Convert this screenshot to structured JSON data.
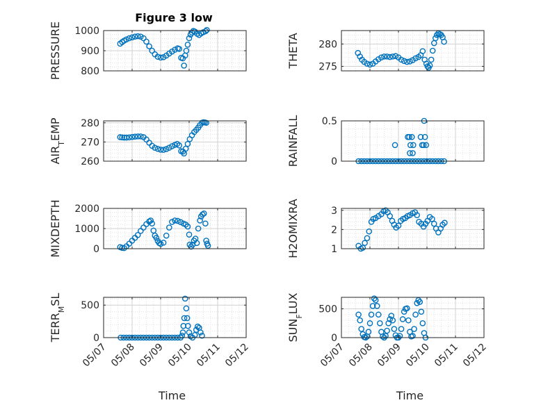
{
  "figure_title": "Figure 3 low",
  "marker_color": "#0072bd",
  "chart_data": [
    {
      "type": "scatter",
      "ylabel": "PRESSURE",
      "xlabel": "",
      "ylim": [
        800,
        1000
      ],
      "yticks": [
        800,
        900,
        1000
      ],
      "grid": true,
      "points": [
        [
          7.58,
          935
        ],
        [
          7.65,
          943
        ],
        [
          7.72,
          950
        ],
        [
          7.8,
          956
        ],
        [
          7.9,
          962
        ],
        [
          8.0,
          966
        ],
        [
          8.1,
          970
        ],
        [
          8.2,
          972
        ],
        [
          8.3,
          970
        ],
        [
          8.4,
          962
        ],
        [
          8.5,
          945
        ],
        [
          8.6,
          922
        ],
        [
          8.7,
          900
        ],
        [
          8.8,
          882
        ],
        [
          8.9,
          870
        ],
        [
          9.0,
          866
        ],
        [
          9.1,
          868
        ],
        [
          9.2,
          876
        ],
        [
          9.3,
          886
        ],
        [
          9.4,
          896
        ],
        [
          9.5,
          905
        ],
        [
          9.6,
          912
        ],
        [
          9.65,
          909
        ],
        [
          9.72,
          865
        ],
        [
          9.78,
          862
        ],
        [
          9.82,
          826
        ],
        [
          9.86,
          876
        ],
        [
          9.9,
          900
        ],
        [
          9.95,
          930
        ],
        [
          10.0,
          962
        ],
        [
          10.05,
          980
        ],
        [
          10.1,
          990
        ],
        [
          10.15,
          998
        ],
        [
          10.2,
          995
        ],
        [
          10.28,
          984
        ],
        [
          10.35,
          978
        ],
        [
          10.42,
          986
        ],
        [
          10.5,
          992
        ],
        [
          10.58,
          997
        ],
        [
          10.62,
          1003
        ]
      ]
    },
    {
      "type": "scatter",
      "ylabel": "THETA",
      "xlabel": "",
      "ylim": [
        274,
        283
      ],
      "yticks": [
        275,
        280
      ],
      "grid": true,
      "points": [
        [
          7.58,
          278.0
        ],
        [
          7.65,
          277.2
        ],
        [
          7.72,
          276.5
        ],
        [
          7.8,
          276.0
        ],
        [
          7.9,
          275.6
        ],
        [
          8.0,
          275.4
        ],
        [
          8.1,
          275.6
        ],
        [
          8.2,
          276.1
        ],
        [
          8.3,
          276.6
        ],
        [
          8.4,
          277.0
        ],
        [
          8.5,
          277.2
        ],
        [
          8.6,
          277.2
        ],
        [
          8.7,
          277.1
        ],
        [
          8.8,
          277.2
        ],
        [
          8.9,
          277.3
        ],
        [
          9.0,
          277.0
        ],
        [
          9.1,
          276.5
        ],
        [
          9.2,
          276.2
        ],
        [
          9.3,
          276.0
        ],
        [
          9.4,
          276.1
        ],
        [
          9.5,
          276.4
        ],
        [
          9.6,
          276.8
        ],
        [
          9.7,
          277.1
        ],
        [
          9.78,
          277.5
        ],
        [
          9.85,
          278.4
        ],
        [
          9.92,
          276.5
        ],
        [
          9.98,
          275.6
        ],
        [
          10.02,
          275.0
        ],
        [
          10.06,
          274.7
        ],
        [
          10.1,
          275.2
        ],
        [
          10.15,
          276.5
        ],
        [
          10.2,
          278.5
        ],
        [
          10.25,
          280.2
        ],
        [
          10.3,
          281.3
        ],
        [
          10.35,
          282.0
        ],
        [
          10.4,
          282.4
        ],
        [
          10.45,
          282.2
        ],
        [
          10.5,
          282.0
        ],
        [
          10.55,
          281.5
        ],
        [
          10.6,
          280.5
        ]
      ]
    },
    {
      "type": "scatter",
      "ylabel": "AIR_TEMP",
      "xlabel": "",
      "ylim": [
        260,
        281
      ],
      "yticks": [
        260,
        270,
        280
      ],
      "grid": true,
      "points": [
        [
          7.58,
          272.5
        ],
        [
          7.65,
          272.4
        ],
        [
          7.72,
          272.3
        ],
        [
          7.8,
          272.3
        ],
        [
          7.9,
          272.4
        ],
        [
          8.0,
          272.6
        ],
        [
          8.1,
          272.8
        ],
        [
          8.2,
          272.9
        ],
        [
          8.3,
          272.9
        ],
        [
          8.4,
          272.5
        ],
        [
          8.5,
          271.3
        ],
        [
          8.6,
          269.6
        ],
        [
          8.7,
          268.0
        ],
        [
          8.8,
          267.0
        ],
        [
          8.9,
          266.4
        ],
        [
          9.0,
          266.0
        ],
        [
          9.1,
          265.9
        ],
        [
          9.2,
          266.3
        ],
        [
          9.3,
          267.0
        ],
        [
          9.4,
          267.8
        ],
        [
          9.5,
          268.5
        ],
        [
          9.58,
          269.0
        ],
        [
          9.65,
          268.2
        ],
        [
          9.72,
          265.2
        ],
        [
          9.78,
          265.0
        ],
        [
          9.82,
          264.0
        ],
        [
          9.88,
          266.5
        ],
        [
          9.95,
          269.0
        ],
        [
          10.02,
          271.5
        ],
        [
          10.1,
          273.5
        ],
        [
          10.18,
          275.2
        ],
        [
          10.25,
          276.3
        ],
        [
          10.32,
          277.5
        ],
        [
          10.38,
          278.8
        ],
        [
          10.45,
          280.0
        ],
        [
          10.5,
          280.3
        ],
        [
          10.55,
          280.2
        ],
        [
          10.6,
          280.0
        ]
      ]
    },
    {
      "type": "scatter",
      "ylabel": "RAINFALL",
      "xlabel": "",
      "ylim": [
        0,
        0.5
      ],
      "yticks": [
        0,
        0.5
      ],
      "grid": true,
      "points": [
        [
          7.6,
          0
        ],
        [
          7.7,
          0
        ],
        [
          7.8,
          0
        ],
        [
          7.9,
          0
        ],
        [
          8.0,
          0
        ],
        [
          8.1,
          0
        ],
        [
          8.2,
          0
        ],
        [
          8.3,
          0
        ],
        [
          8.4,
          0
        ],
        [
          8.5,
          0
        ],
        [
          8.6,
          0
        ],
        [
          8.7,
          0
        ],
        [
          8.8,
          0
        ],
        [
          8.9,
          0
        ],
        [
          9.0,
          0
        ],
        [
          9.1,
          0
        ],
        [
          9.2,
          0
        ],
        [
          9.3,
          0
        ],
        [
          9.4,
          0
        ],
        [
          9.5,
          0
        ],
        [
          9.6,
          0
        ],
        [
          9.7,
          0
        ],
        [
          9.8,
          0
        ],
        [
          9.9,
          0
        ],
        [
          10.0,
          0
        ],
        [
          10.1,
          0
        ],
        [
          10.2,
          0
        ],
        [
          10.3,
          0
        ],
        [
          10.4,
          0
        ],
        [
          10.5,
          0
        ],
        [
          10.6,
          0
        ],
        [
          8.88,
          0.2
        ],
        [
          9.33,
          0.3
        ],
        [
          9.38,
          0.3
        ],
        [
          9.42,
          0.2
        ],
        [
          9.47,
          0.3
        ],
        [
          9.52,
          0.2
        ],
        [
          9.4,
          0.1
        ],
        [
          9.5,
          0.1
        ],
        [
          9.78,
          0.3
        ],
        [
          9.83,
          0.2
        ],
        [
          9.88,
          0.2
        ],
        [
          9.9,
          0.5
        ],
        [
          9.93,
          0.3
        ],
        [
          9.97,
          0.2
        ]
      ]
    },
    {
      "type": "scatter",
      "ylabel": "MIXDEPTH",
      "xlabel": "",
      "ylim": [
        0,
        2000
      ],
      "yticks": [
        0,
        1000,
        2000
      ],
      "grid": true,
      "points": [
        [
          7.58,
          80
        ],
        [
          7.65,
          40
        ],
        [
          7.72,
          30
        ],
        [
          7.8,
          120
        ],
        [
          7.9,
          250
        ],
        [
          8.0,
          400
        ],
        [
          8.1,
          540
        ],
        [
          8.2,
          680
        ],
        [
          8.3,
          880
        ],
        [
          8.4,
          1050
        ],
        [
          8.5,
          1220
        ],
        [
          8.6,
          1350
        ],
        [
          8.65,
          1400
        ],
        [
          8.7,
          1250
        ],
        [
          8.75,
          900
        ],
        [
          8.8,
          650
        ],
        [
          8.85,
          540
        ],
        [
          8.9,
          380
        ],
        [
          8.95,
          280
        ],
        [
          9.0,
          240
        ],
        [
          9.1,
          300
        ],
        [
          9.2,
          650
        ],
        [
          9.3,
          1050
        ],
        [
          9.4,
          1330
        ],
        [
          9.5,
          1400
        ],
        [
          9.6,
          1380
        ],
        [
          9.7,
          1320
        ],
        [
          9.8,
          1250
        ],
        [
          9.88,
          1200
        ],
        [
          9.95,
          1100
        ],
        [
          10.0,
          700
        ],
        [
          10.02,
          200
        ],
        [
          10.07,
          100
        ],
        [
          10.12,
          200
        ],
        [
          10.17,
          400
        ],
        [
          10.22,
          500
        ],
        [
          10.27,
          280
        ],
        [
          10.32,
          1000
        ],
        [
          10.38,
          1400
        ],
        [
          10.42,
          1600
        ],
        [
          10.47,
          1700
        ],
        [
          10.52,
          1750
        ],
        [
          10.57,
          1250
        ],
        [
          10.6,
          400
        ],
        [
          10.63,
          250
        ],
        [
          10.66,
          150
        ]
      ]
    },
    {
      "type": "scatter",
      "ylabel": "H2OMIXRA",
      "xlabel": "",
      "ylim": [
        1,
        3.1
      ],
      "yticks": [
        1,
        2,
        3
      ],
      "grid": true,
      "points": [
        [
          7.6,
          1.15
        ],
        [
          7.68,
          1.0
        ],
        [
          7.75,
          1.05
        ],
        [
          7.82,
          1.3
        ],
        [
          7.9,
          1.55
        ],
        [
          7.97,
          1.9
        ],
        [
          8.05,
          2.4
        ],
        [
          8.12,
          2.55
        ],
        [
          8.2,
          2.6
        ],
        [
          8.3,
          2.7
        ],
        [
          8.4,
          2.8
        ],
        [
          8.48,
          2.95
        ],
        [
          8.55,
          3.0
        ],
        [
          8.62,
          2.9
        ],
        [
          8.7,
          2.7
        ],
        [
          8.78,
          2.45
        ],
        [
          8.85,
          2.25
        ],
        [
          8.92,
          2.1
        ],
        [
          9.0,
          2.2
        ],
        [
          9.08,
          2.45
        ],
        [
          9.16,
          2.55
        ],
        [
          9.24,
          2.6
        ],
        [
          9.32,
          2.7
        ],
        [
          9.4,
          2.75
        ],
        [
          9.5,
          2.85
        ],
        [
          9.58,
          2.9
        ],
        [
          9.65,
          2.75
        ],
        [
          9.72,
          2.4
        ],
        [
          9.8,
          2.3
        ],
        [
          9.88,
          2.15
        ],
        [
          9.95,
          2.3
        ],
        [
          10.02,
          2.45
        ],
        [
          10.1,
          2.65
        ],
        [
          10.18,
          2.55
        ],
        [
          10.25,
          2.3
        ],
        [
          10.32,
          2.05
        ],
        [
          10.4,
          1.85
        ],
        [
          10.48,
          2.05
        ],
        [
          10.55,
          2.25
        ],
        [
          10.62,
          2.35
        ]
      ]
    },
    {
      "type": "scatter",
      "ylabel": "TERR_MSL",
      "xlabel": "Time",
      "xticklabels": [
        "05/07",
        "05/08",
        "05/09",
        "05/10",
        "05/11",
        "05/12"
      ],
      "ylim": [
        0,
        620
      ],
      "yticks": [
        0,
        500
      ],
      "grid": true,
      "points": [
        [
          7.6,
          0
        ],
        [
          7.7,
          0
        ],
        [
          7.8,
          0
        ],
        [
          7.9,
          0
        ],
        [
          8.0,
          0
        ],
        [
          8.1,
          0
        ],
        [
          8.2,
          0
        ],
        [
          8.3,
          0
        ],
        [
          8.4,
          0
        ],
        [
          8.5,
          0
        ],
        [
          8.6,
          0
        ],
        [
          8.7,
          0
        ],
        [
          8.8,
          0
        ],
        [
          8.9,
          0
        ],
        [
          9.0,
          0
        ],
        [
          9.1,
          0
        ],
        [
          9.2,
          0
        ],
        [
          9.3,
          0
        ],
        [
          9.4,
          0
        ],
        [
          9.5,
          0
        ],
        [
          9.6,
          0
        ],
        [
          9.7,
          0
        ],
        [
          9.75,
          30
        ],
        [
          9.78,
          80
        ],
        [
          9.8,
          180
        ],
        [
          9.83,
          300
        ],
        [
          9.86,
          600
        ],
        [
          9.9,
          450
        ],
        [
          9.93,
          300
        ],
        [
          9.96,
          180
        ],
        [
          10.0,
          80
        ],
        [
          10.05,
          20
        ],
        [
          10.12,
          0
        ],
        [
          10.2,
          40
        ],
        [
          10.25,
          120
        ],
        [
          10.3,
          170
        ],
        [
          10.35,
          150
        ],
        [
          10.4,
          80
        ],
        [
          10.45,
          30
        ]
      ]
    },
    {
      "type": "scatter",
      "ylabel": "SUN_FLUX",
      "xlabel": "Time",
      "xticklabels": [
        "05/07",
        "05/08",
        "05/09",
        "05/10",
        "05/11",
        "05/12"
      ],
      "ylim": [
        0,
        700
      ],
      "yticks": [
        0,
        500
      ],
      "grid": true,
      "points": [
        [
          7.6,
          400
        ],
        [
          7.65,
          300
        ],
        [
          7.7,
          150
        ],
        [
          7.75,
          60
        ],
        [
          7.8,
          10
        ],
        [
          7.85,
          0
        ],
        [
          7.9,
          20
        ],
        [
          7.95,
          100
        ],
        [
          8.0,
          250
        ],
        [
          8.05,
          400
        ],
        [
          8.1,
          550
        ],
        [
          8.15,
          680
        ],
        [
          8.2,
          650
        ],
        [
          8.25,
          550
        ],
        [
          8.3,
          400
        ],
        [
          8.35,
          250
        ],
        [
          8.4,
          100
        ],
        [
          8.45,
          20
        ],
        [
          8.5,
          0
        ],
        [
          8.55,
          30
        ],
        [
          8.6,
          120
        ],
        [
          8.65,
          250
        ],
        [
          8.7,
          320
        ],
        [
          8.75,
          380
        ],
        [
          8.8,
          300
        ],
        [
          8.85,
          150
        ],
        [
          8.9,
          40
        ],
        [
          8.95,
          0
        ],
        [
          9.0,
          0
        ],
        [
          9.05,
          30
        ],
        [
          9.1,
          150
        ],
        [
          9.15,
          320
        ],
        [
          9.2,
          450
        ],
        [
          9.25,
          500
        ],
        [
          9.3,
          510
        ],
        [
          9.35,
          300
        ],
        [
          9.4,
          100
        ],
        [
          9.45,
          20
        ],
        [
          9.5,
          30
        ],
        [
          9.55,
          150
        ],
        [
          9.6,
          400
        ],
        [
          9.65,
          600
        ],
        [
          9.7,
          650
        ],
        [
          9.75,
          620
        ],
        [
          9.8,
          450
        ],
        [
          9.85,
          250
        ],
        [
          9.9,
          80
        ],
        [
          9.95,
          0
        ]
      ]
    }
  ]
}
